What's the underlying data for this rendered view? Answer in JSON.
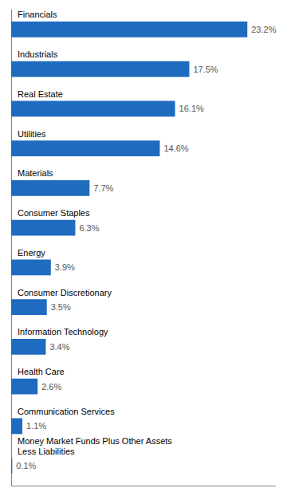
{
  "chart_data": {
    "type": "bar",
    "orientation": "horizontal",
    "categories": [
      "Financials",
      "Industrials",
      "Real Estate",
      "Utilities",
      "Materials",
      "Consumer Staples",
      "Energy",
      "Consumer Discretionary",
      "Information Technology",
      "Health Care",
      "Communication Services",
      "Money Market Funds Plus Other Assets\nLess Liabilities"
    ],
    "values": [
      23.2,
      17.5,
      16.1,
      14.6,
      7.7,
      6.3,
      3.9,
      3.5,
      3.4,
      2.6,
      1.1,
      0.1
    ],
    "value_labels": [
      "23.2%",
      "17.5%",
      "16.1%",
      "14.6%",
      "7.7%",
      "6.3%",
      "3.9%",
      "3.5%",
      "3.4%",
      "2.6%",
      "1.1%",
      "0.1%"
    ],
    "color": "#1f6bbf",
    "xlim": [
      0,
      26.0
    ],
    "grid": false,
    "data_labels": true,
    "tick_labels": "y"
  }
}
